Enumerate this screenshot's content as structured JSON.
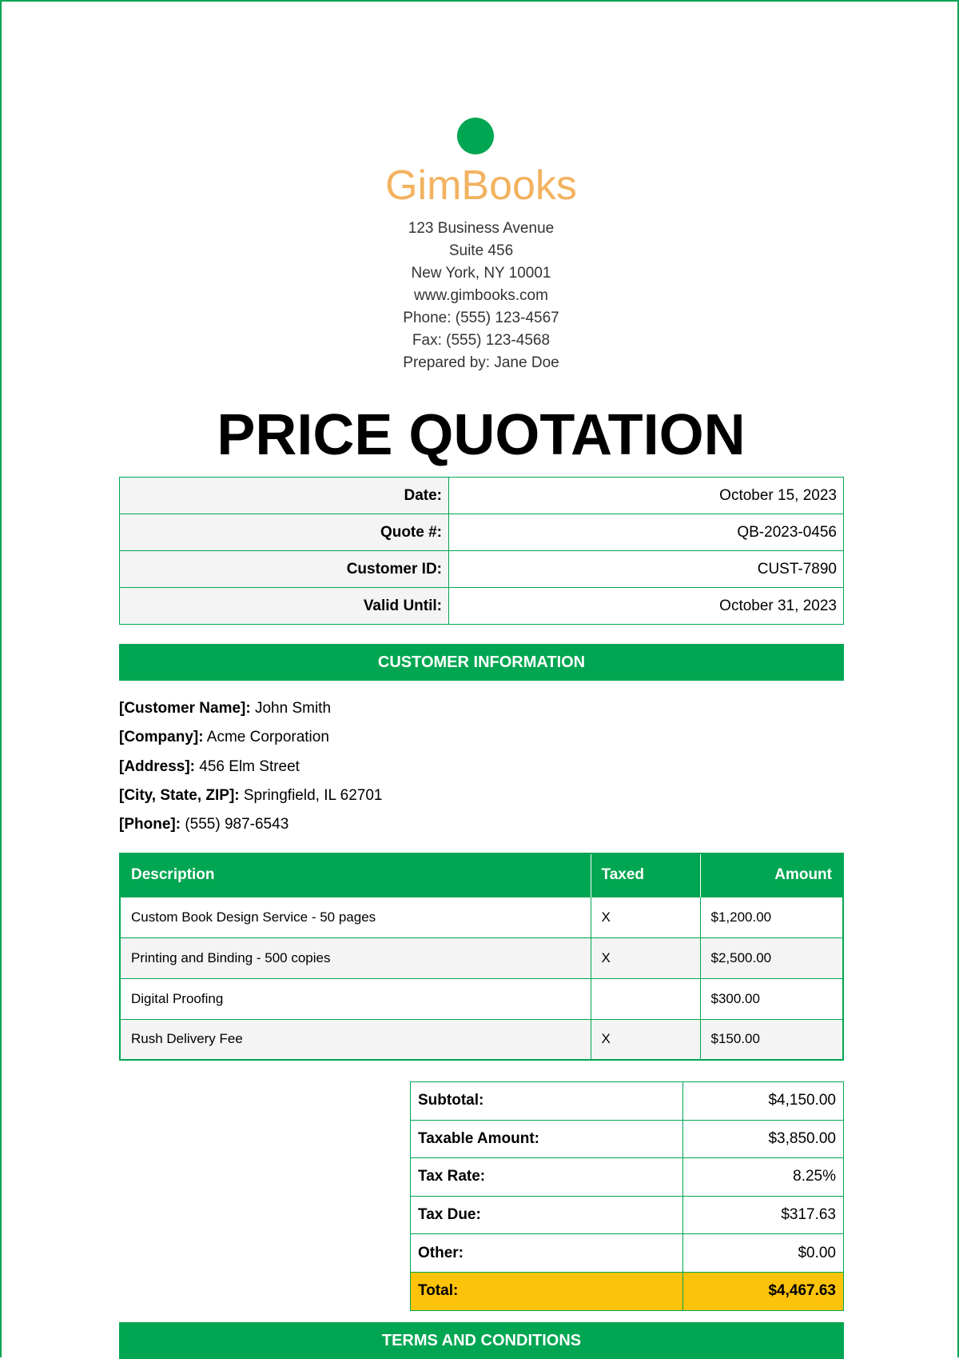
{
  "company": {
    "name": "GimBooks",
    "address_lines": [
      "123 Business Avenue",
      "Suite 456",
      "New York, NY 10001",
      "www.gimbooks.com",
      "Phone: (555) 123-4567",
      "Fax: (555) 123-4568",
      "Prepared by: Jane Doe"
    ]
  },
  "title": "PRICE QUOTATION",
  "meta": [
    {
      "label": "Date:",
      "value": "October 15, 2023"
    },
    {
      "label": "Quote #:",
      "value": "QB-2023-0456"
    },
    {
      "label": "Customer ID:",
      "value": "CUST-7890"
    },
    {
      "label": "Valid Until:",
      "value": "October 31, 2023"
    }
  ],
  "customer": {
    "heading": "CUSTOMER INFORMATION",
    "fields": [
      {
        "label": "[Customer Name]:",
        "value": " John Smith"
      },
      {
        "label": "[Company]:",
        "value": " Acme Corporation"
      },
      {
        "label": "[Address]:",
        "value": " 456 Elm Street"
      },
      {
        "label": "[City, State, ZIP]:",
        "value": " Springfield, IL 62701"
      },
      {
        "label": "[Phone]:",
        "value": " (555) 987-6543"
      }
    ]
  },
  "items": {
    "headers": [
      "Description",
      "Taxed",
      "Amount"
    ],
    "rows": [
      [
        "Custom Book Design Service - 50 pages",
        "X",
        "$1,200.00"
      ],
      [
        "Printing and Binding - 500 copies",
        "X",
        "$2,500.00"
      ],
      [
        "Digital Proofing",
        "",
        "$300.00"
      ],
      [
        "Rush Delivery Fee",
        "X",
        "$150.00"
      ]
    ]
  },
  "totals": [
    {
      "label": "Subtotal:",
      "value": "$4,150.00"
    },
    {
      "label": "Taxable Amount:",
      "value": "$3,850.00"
    },
    {
      "label": "Tax Rate:",
      "value": "8.25%"
    },
    {
      "label": "Tax Due:",
      "value": "$317.63"
    },
    {
      "label": "Other:",
      "value": "$0.00"
    },
    {
      "label": "Total:",
      "value": "$4,467.63"
    }
  ],
  "terms": {
    "heading": "TERMS AND CONDITIONS"
  },
  "colors": {
    "accent": "#00a651",
    "brand": "#f2b25f",
    "total_highlight": "#fdc20a"
  }
}
